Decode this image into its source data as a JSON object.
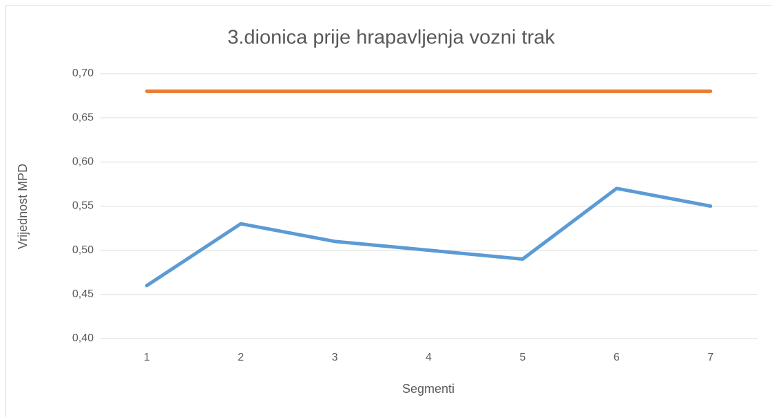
{
  "chart_data": {
    "type": "line",
    "title": "3.dionica prije hrapavljenja vozni trak",
    "x_label": "Segmenti",
    "y_label": "Vrijednost MPD",
    "categories": [
      "1",
      "2",
      "3",
      "4",
      "5",
      "6",
      "7"
    ],
    "series": [
      {
        "color": "#5b9bd5",
        "values": [
          0.46,
          0.53,
          0.51,
          0.5,
          0.49,
          0.57,
          0.55
        ]
      },
      {
        "color": "#ed7d31",
        "values": [
          0.68,
          0.68,
          0.68,
          0.68,
          0.68,
          0.68,
          0.68
        ]
      }
    ],
    "ylim": [
      0.4,
      0.7
    ],
    "yticks": [
      {
        "value": 0.4,
        "label": "0,40"
      },
      {
        "value": 0.45,
        "label": "0,45"
      },
      {
        "value": 0.5,
        "label": "0,50"
      },
      {
        "value": 0.55,
        "label": "0,55"
      },
      {
        "value": 0.6,
        "label": "0,60"
      },
      {
        "value": 0.65,
        "label": "0,65"
      },
      {
        "value": 0.7,
        "label": "0,70"
      }
    ],
    "grid": true
  }
}
